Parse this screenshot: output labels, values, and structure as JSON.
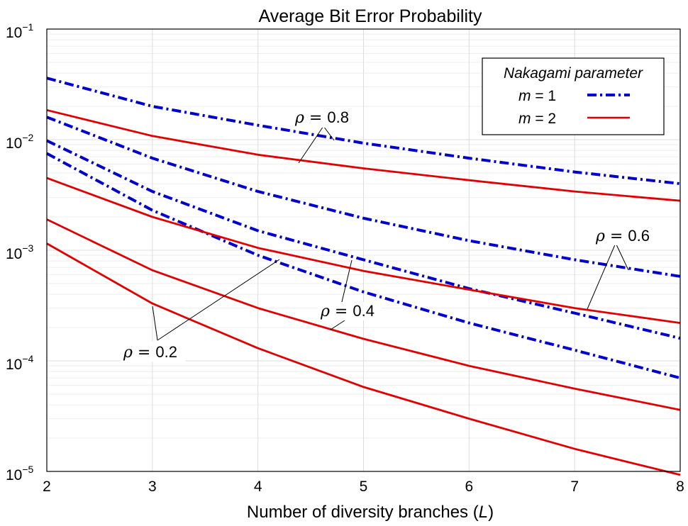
{
  "chart_data": {
    "type": "line",
    "title": "Average Bit Error Probability",
    "xlabel_parts": [
      "Number of diversity branches (",
      "L",
      ")"
    ],
    "x": [
      2,
      3,
      4,
      5,
      6,
      7,
      8
    ],
    "xlim": [
      2,
      8
    ],
    "ylim": [
      1e-05,
      0.1
    ],
    "yscale": "log",
    "grid": true,
    "ytick_labels": [
      {
        "base": "10",
        "exp": "−1",
        "value": 0.1
      },
      {
        "base": "10",
        "exp": "−2",
        "value": 0.01
      },
      {
        "base": "10",
        "exp": "−3",
        "value": 0.001
      },
      {
        "base": "10",
        "exp": "−4",
        "value": 0.0001
      },
      {
        "base": "10",
        "exp": "−5",
        "value": 1e-05
      }
    ],
    "legend": {
      "title": "Nakagami parameter",
      "placement": "top-right",
      "entries": [
        {
          "var": "m",
          "rest": " = 1",
          "color": "#0000cc",
          "style": "dashdot"
        },
        {
          "var": "m",
          "rest": " = 2",
          "color": "#e00000",
          "style": "solid"
        }
      ]
    },
    "series": [
      {
        "m": 1,
        "rho": 0.8,
        "color": "#0000cc",
        "style": "dashdot",
        "values": [
          0.036,
          0.02,
          0.0135,
          0.0093,
          0.0068,
          0.0051,
          0.004
        ]
      },
      {
        "m": 1,
        "rho": 0.6,
        "color": "#0000cc",
        "style": "dashdot",
        "values": [
          0.016,
          0.0068,
          0.0034,
          0.00195,
          0.00122,
          0.00082,
          0.00058
        ]
      },
      {
        "m": 1,
        "rho": 0.4,
        "color": "#0000cc",
        "style": "dashdot",
        "values": [
          0.0098,
          0.0034,
          0.0015,
          0.00082,
          0.00045,
          0.00027,
          0.00016
        ]
      },
      {
        "m": 1,
        "rho": 0.2,
        "color": "#0000cc",
        "style": "dashdot",
        "values": [
          0.0075,
          0.0023,
          0.0009,
          0.00042,
          0.00022,
          0.000125,
          7e-05
        ]
      },
      {
        "m": 2,
        "rho": 0.8,
        "color": "#e00000",
        "style": "solid",
        "values": [
          0.0185,
          0.0108,
          0.0073,
          0.0055,
          0.0043,
          0.0034,
          0.0028
        ]
      },
      {
        "m": 2,
        "rho": 0.6,
        "color": "#e00000",
        "style": "solid",
        "values": [
          0.0045,
          0.002,
          0.00105,
          0.00065,
          0.00044,
          0.0003,
          0.00022
        ]
      },
      {
        "m": 2,
        "rho": 0.4,
        "color": "#e00000",
        "style": "solid",
        "values": [
          0.0019,
          0.00066,
          0.0003,
          0.000158,
          9e-05,
          5.6e-05,
          3.6e-05
        ]
      },
      {
        "m": 2,
        "rho": 0.2,
        "color": "#e00000",
        "style": "solid",
        "values": [
          0.00115,
          0.00033,
          0.00013,
          5.8e-05,
          3e-05,
          1.6e-05,
          9.3e-06
        ]
      }
    ],
    "annotations": [
      {
        "symbol": "ρ",
        "eq": " = ",
        "value": "0.8"
      },
      {
        "symbol": "ρ",
        "eq": " = ",
        "value": "0.6"
      },
      {
        "symbol": "ρ",
        "eq": " = ",
        "value": "0.4"
      },
      {
        "symbol": "ρ",
        "eq": " = ",
        "value": "0.2"
      }
    ]
  }
}
